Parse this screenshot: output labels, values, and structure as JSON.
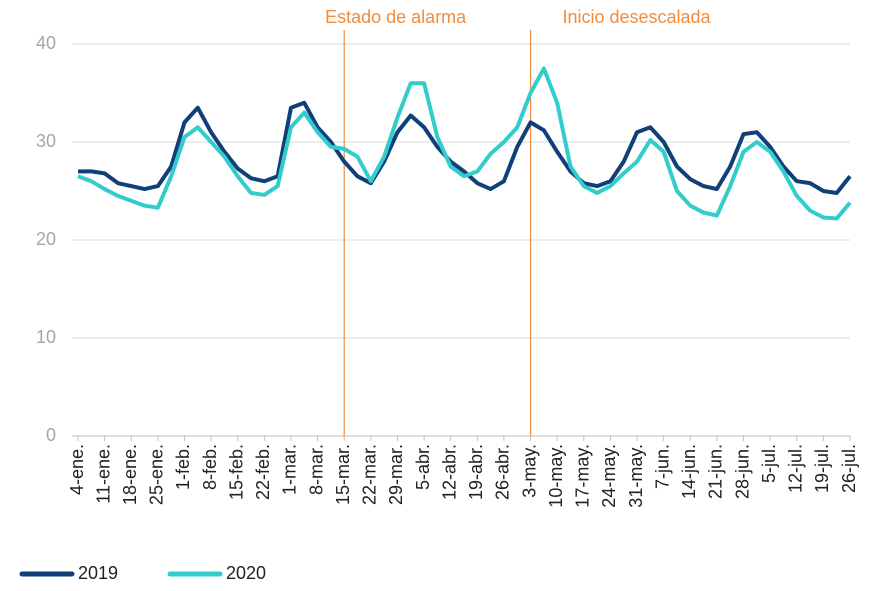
{
  "chart_data": {
    "type": "line",
    "categories": [
      "4-ene.",
      null,
      "11-ene.",
      null,
      "18-ene.",
      null,
      "25-ene.",
      null,
      "1-feb.",
      null,
      "8-feb.",
      null,
      "15-feb.",
      null,
      "22-feb.",
      null,
      "1-mar.",
      null,
      "8-mar.",
      null,
      "15-mar.",
      null,
      "22-mar.",
      null,
      "29-mar.",
      null,
      "5-abr.",
      null,
      "12-abr.",
      null,
      "19-abr.",
      null,
      "26-abr.",
      null,
      "3-may.",
      null,
      "10-may.",
      null,
      "17-may.",
      null,
      "24-may.",
      null,
      "31-may.",
      null,
      "7-jun.",
      null,
      "14-jun.",
      null,
      "21-jun.",
      null,
      "28-jun.",
      null,
      "5-jul.",
      null,
      "12-jul.",
      null,
      "19-jul.",
      null,
      "26-jul."
    ],
    "series": [
      {
        "name": "2019",
        "color": "#103f7a",
        "values": [
          27,
          27,
          26.8,
          25.8,
          25.5,
          25.2,
          25.5,
          27.5,
          32,
          33.5,
          31,
          29,
          27.3,
          26.3,
          26,
          26.5,
          33.5,
          34,
          31.5,
          30,
          28,
          26.5,
          25.8,
          28,
          31,
          32.7,
          31.5,
          29.5,
          28,
          27,
          25.8,
          25.2,
          26,
          29.5,
          32,
          31.2,
          29,
          27,
          25.8,
          25.5,
          26,
          28,
          31,
          31.5,
          30,
          27.5,
          26.2,
          25.5,
          25.2,
          27.5,
          30.8,
          31,
          29.5,
          27.5,
          26,
          25.8,
          25,
          24.8,
          26.5
        ]
      },
      {
        "name": "2020",
        "color": "#33cccc",
        "values": [
          26.5,
          26,
          25.2,
          24.5,
          24,
          23.5,
          23.3,
          26.5,
          30.5,
          31.5,
          30,
          28.5,
          26.5,
          24.8,
          24.6,
          25.5,
          31.5,
          33,
          31,
          29.5,
          29.3,
          28.5,
          26,
          28.5,
          32.5,
          36,
          36,
          30.5,
          27.5,
          26.5,
          27,
          28.8,
          30,
          31.5,
          35,
          37.5,
          34,
          27.5,
          25.5,
          24.8,
          25.5,
          26.8,
          28,
          30.2,
          29,
          25,
          23.5,
          22.8,
          22.5,
          25.5,
          29,
          30,
          29,
          27,
          24.5,
          23,
          22.3,
          22.2,
          23.8
        ]
      }
    ],
    "ylim": [
      0,
      40
    ],
    "yticks": [
      0,
      10,
      20,
      30,
      40
    ],
    "grid": true,
    "annotations": [
      {
        "text": "Estado de alarma",
        "x": "15-mar."
      },
      {
        "text": "Inicio desescalada",
        "x": "3-may."
      }
    ],
    "annotation_color": "#f28c3c",
    "legend": "bottom-left"
  }
}
